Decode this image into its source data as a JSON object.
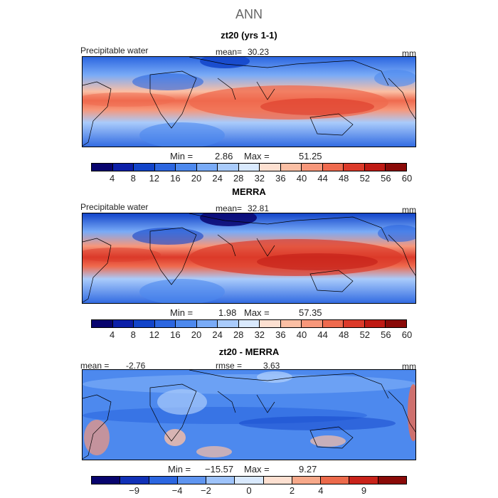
{
  "figure": {
    "title": "ANN"
  },
  "panels": [
    {
      "heading": "zt20 (yrs 1-1)",
      "left_label": "Precipitable water",
      "mean_label": "mean=",
      "mean_value": "30.23",
      "unit": "mm",
      "min_label": "Min =",
      "min_value": "2.86",
      "max_label": "Max =",
      "max_value": "51.25",
      "colorbar_ticks": [
        "4",
        "8",
        "12",
        "16",
        "20",
        "24",
        "28",
        "32",
        "36",
        "40",
        "44",
        "48",
        "52",
        "56",
        "60"
      ]
    },
    {
      "heading": "MERRA",
      "left_label": "Precipitable water",
      "mean_label": "mean=",
      "mean_value": "32.81",
      "unit": "mm",
      "min_label": "Min =",
      "min_value": "1.98",
      "max_label": "Max =",
      "max_value": "57.35",
      "colorbar_ticks": [
        "4",
        "8",
        "12",
        "16",
        "20",
        "24",
        "28",
        "32",
        "36",
        "40",
        "44",
        "48",
        "52",
        "56",
        "60"
      ]
    },
    {
      "heading": "zt20 - MERRA",
      "left_label": "mean =",
      "left_value": "-2.76",
      "mid_label": "rmse =",
      "mid_value": "3.63",
      "unit": "mm",
      "min_label": "Min =",
      "min_value": "−15.57",
      "max_label": "Max =",
      "max_value": "9.27",
      "colorbar_ticks": [
        "−9",
        "−4",
        "−2",
        "0",
        "2",
        "4",
        "9"
      ]
    }
  ],
  "colors": {
    "abs_scale": [
      "#08046e",
      "#0c1fa8",
      "#1244c9",
      "#2c66e0",
      "#4d89ee",
      "#79abf7",
      "#a9cbfb",
      "#d9e9fd",
      "#fde0d1",
      "#fbbfa4",
      "#f7977a",
      "#ef6a4e",
      "#dc3a2a",
      "#bf1a14",
      "#8a0a08"
    ],
    "diff_scale": [
      "#08046e",
      "#1131b7",
      "#2c66e0",
      "#5f95f0",
      "#9ec3fa",
      "#d9e9fd",
      "#fde0d1",
      "#f7a98a",
      "#ec6a4b",
      "#c9231a",
      "#8a0a08"
    ]
  }
}
